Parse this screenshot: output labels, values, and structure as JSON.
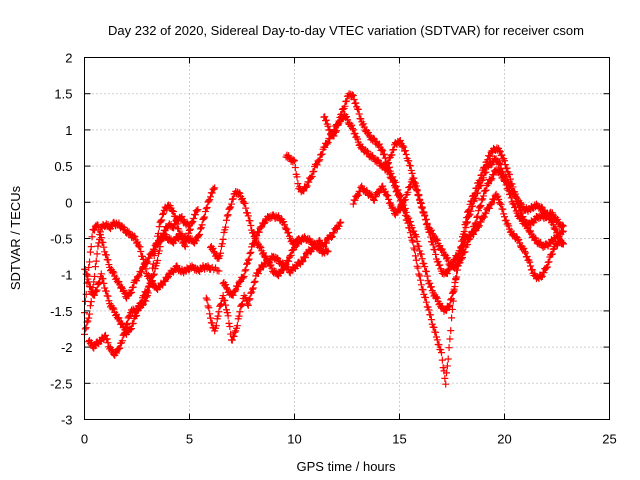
{
  "chart_data": {
    "type": "scatter",
    "title": "Day 232 of 2020, Sidereal Day-to-day VTEC variation (SDTVAR) for receiver csom",
    "xlabel": "GPS time / hours",
    "ylabel": "SDTVAR / TECUs",
    "xlim": [
      0,
      25
    ],
    "ylim": [
      -3,
      2
    ],
    "xticks": [
      0,
      5,
      10,
      15,
      20,
      25
    ],
    "xtick_labels": [
      "0",
      "5",
      "10",
      "15",
      "20",
      "25"
    ],
    "yticks": [
      -3,
      -2.5,
      -2,
      -1.5,
      -1,
      -0.5,
      0,
      0.5,
      1,
      1.5,
      2
    ],
    "ytick_labels": [
      "-3",
      "-2.5",
      "-2",
      "-1.5",
      "-1",
      "-0.5",
      "0",
      "0.5",
      "1",
      "1.5",
      "2"
    ],
    "grid": true,
    "marker": "+",
    "color": "#ff0000",
    "series": [
      {
        "name": "s1",
        "x": [
          0.0,
          0.2,
          0.4,
          0.6,
          0.8,
          1.0,
          1.2,
          1.4,
          1.6,
          1.8,
          2.0,
          2.2,
          2.4,
          2.6,
          2.8,
          3.0,
          3.2,
          3.4,
          3.6,
          3.8,
          4.0,
          4.2,
          4.4,
          4.6,
          4.8,
          5.0,
          5.2,
          5.4,
          5.6,
          5.8,
          6.0,
          6.2
        ],
        "y": [
          -1.5,
          -0.9,
          -0.4,
          -0.3,
          -0.5,
          -0.7,
          -0.9,
          -1.0,
          -1.1,
          -1.2,
          -1.3,
          -1.25,
          -1.1,
          -1.0,
          -0.9,
          -0.8,
          -0.7,
          -0.6,
          -0.5,
          -0.45,
          -0.5,
          -0.55,
          -0.5,
          -0.45,
          -0.5,
          -0.5,
          -0.55,
          -0.5,
          -0.3,
          -0.1,
          0.1,
          0.2
        ]
      },
      {
        "name": "s2",
        "x": [
          0.0,
          0.2,
          0.4,
          0.6,
          0.8,
          1.0,
          1.2,
          1.4,
          1.6,
          1.8,
          2.0,
          2.2,
          2.4,
          2.6,
          2.8,
          3.0,
          3.2,
          3.4,
          3.6,
          3.8,
          4.0,
          4.2,
          4.4,
          4.6,
          4.8,
          5.0,
          5.2,
          5.4,
          5.6,
          5.8,
          6.0,
          6.4
        ],
        "y": [
          -1.8,
          -1.6,
          -1.2,
          -0.7,
          -0.35,
          -0.3,
          -0.35,
          -0.3,
          -0.3,
          -0.35,
          -0.4,
          -0.45,
          -0.5,
          -0.6,
          -0.8,
          -1.0,
          -1.1,
          -1.2,
          -1.15,
          -1.1,
          -1.0,
          -0.95,
          -0.9,
          -0.95,
          -0.95,
          -0.9,
          -0.9,
          -0.95,
          -0.9,
          -0.9,
          -0.9,
          -0.95
        ]
      },
      {
        "name": "s3",
        "x": [
          0.2,
          0.4,
          0.6,
          0.8,
          1.0,
          1.2,
          1.4,
          1.6,
          1.8,
          2.0,
          2.2,
          2.4,
          2.6,
          2.8,
          3.0,
          3.2,
          3.4,
          3.6,
          3.8,
          4.0,
          4.2,
          4.4,
          4.6,
          4.8,
          5.0,
          5.2,
          5.4
        ],
        "y": [
          -1.9,
          -2.0,
          -1.95,
          -1.9,
          -1.85,
          -2.0,
          -2.1,
          -2.05,
          -1.9,
          -1.7,
          -1.5,
          -1.5,
          -1.45,
          -1.4,
          -1.3,
          -1.0,
          -0.6,
          -0.3,
          -0.1,
          -0.05,
          -0.1,
          -0.3,
          -0.5,
          -0.6,
          -0.4,
          -0.2,
          -0.1
        ]
      },
      {
        "name": "s4",
        "x": [
          0.0,
          0.2,
          0.4,
          0.6,
          0.8,
          1.0,
          1.2,
          1.4,
          1.6,
          1.8,
          2.0,
          2.2,
          2.4,
          2.6,
          2.8,
          3.0,
          3.2,
          3.4,
          3.6,
          3.8,
          4.0,
          4.2,
          4.4,
          4.6,
          4.8,
          5.0
        ],
        "y": [
          -0.9,
          -1.1,
          -1.3,
          -1.2,
          -1.0,
          -1.2,
          -1.4,
          -1.5,
          -1.6,
          -1.7,
          -1.8,
          -1.75,
          -1.6,
          -1.45,
          -1.3,
          -1.2,
          -1.1,
          -0.9,
          -0.6,
          -0.4,
          -0.3,
          -0.35,
          -0.25,
          -0.2,
          -0.3,
          -0.3
        ]
      },
      {
        "name": "s5",
        "x": [
          5.8,
          6.0,
          6.2,
          6.4,
          6.6,
          6.8,
          7.0,
          7.2,
          7.4,
          7.6,
          7.8,
          8.0,
          8.2,
          8.4,
          8.6,
          8.8,
          9.0,
          9.2,
          9.4,
          9.6,
          9.8,
          10.0,
          10.2,
          10.4,
          10.6,
          10.8,
          11.0,
          11.2,
          11.4,
          11.6,
          11.8,
          12.0,
          12.2
        ],
        "y": [
          -1.3,
          -1.6,
          -1.8,
          -1.5,
          -1.3,
          -1.5,
          -1.9,
          -1.8,
          -1.5,
          -1.3,
          -1.4,
          -1.2,
          -1.0,
          -0.9,
          -0.85,
          -0.8,
          -0.75,
          -0.8,
          -0.85,
          -0.9,
          -0.95,
          -0.9,
          -0.85,
          -0.8,
          -0.7,
          -0.65,
          -0.6,
          -0.55,
          -0.6,
          -0.5,
          -0.45,
          -0.35,
          -0.3
        ]
      },
      {
        "name": "s6",
        "x": [
          6.6,
          6.8,
          7.0,
          7.2,
          7.4,
          7.6,
          7.8,
          8.0,
          8.2,
          8.4,
          8.6,
          8.8,
          9.0,
          9.2,
          9.4,
          9.6,
          9.8,
          10.0,
          10.2,
          10.4,
          10.6,
          10.8,
          11.0,
          11.2,
          11.4,
          11.6
        ],
        "y": [
          -1.1,
          -1.2,
          -1.3,
          -1.2,
          -1.1,
          -1.0,
          -0.8,
          -0.6,
          -0.45,
          -0.35,
          -0.25,
          -0.2,
          -0.2,
          -0.2,
          -0.25,
          -0.35,
          -0.5,
          -0.6,
          -0.55,
          -0.5,
          -0.5,
          -0.55,
          -0.6,
          -0.65,
          -0.7,
          -0.65
        ]
      },
      {
        "name": "s7",
        "x": [
          6.0,
          6.2,
          6.4,
          6.6,
          6.8,
          7.0,
          7.2,
          7.4,
          7.6,
          7.8,
          8.0,
          8.2,
          8.4,
          8.6,
          8.8,
          9.0,
          9.2,
          9.4,
          9.6,
          9.8,
          10.0,
          10.2
        ],
        "y": [
          -0.6,
          -0.7,
          -0.8,
          -0.5,
          -0.2,
          0.0,
          0.15,
          0.1,
          0.0,
          -0.2,
          -0.4,
          -0.55,
          -0.65,
          -0.75,
          -0.85,
          -0.95,
          -1.0,
          -0.95,
          -0.85,
          -0.75,
          -0.6,
          -0.5
        ]
      },
      {
        "name": "s8",
        "x": [
          9.6,
          9.8,
          10.0,
          10.2,
          10.4,
          10.6,
          10.8,
          11.0,
          11.2,
          11.4,
          11.6,
          11.8,
          12.0,
          12.2,
          12.4,
          12.6,
          12.8,
          13.0,
          13.2,
          13.4,
          13.6,
          13.8,
          14.0,
          14.2,
          14.4,
          14.6,
          14.8,
          15.0,
          15.2,
          15.4,
          15.6,
          15.8,
          16.0,
          16.2,
          16.4,
          16.6,
          16.8,
          17.0,
          17.2,
          17.4,
          17.6,
          17.8,
          18.0,
          18.2,
          18.4,
          18.6,
          18.8,
          19.0,
          19.2,
          19.4,
          19.6,
          19.8,
          20.0,
          20.2,
          20.4,
          20.6,
          20.8,
          21.0,
          21.2,
          21.4,
          21.6,
          21.8,
          22.0,
          22.2,
          22.4,
          22.6,
          22.8
        ],
        "y": [
          0.65,
          0.6,
          0.55,
          0.2,
          0.15,
          0.25,
          0.35,
          0.5,
          0.6,
          0.75,
          0.85,
          0.95,
          1.05,
          1.15,
          1.2,
          1.1,
          1.0,
          0.85,
          0.75,
          0.7,
          0.65,
          0.6,
          0.55,
          0.5,
          0.45,
          0.35,
          0.2,
          0.05,
          -0.1,
          -0.3,
          -0.5,
          -0.8,
          -1.1,
          -1.3,
          -1.5,
          -1.7,
          -1.9,
          -2.1,
          -2.5,
          -1.9,
          -1.2,
          -0.8,
          -0.5,
          -0.2,
          0.0,
          0.15,
          0.3,
          0.45,
          0.6,
          0.7,
          0.75,
          0.7,
          0.55,
          0.4,
          0.2,
          0.0,
          -0.15,
          -0.3,
          -0.4,
          -0.5,
          -0.55,
          -0.6,
          -0.6,
          -0.55,
          -0.5,
          -0.45,
          -0.4
        ]
      },
      {
        "name": "s9",
        "x": [
          11.4,
          11.6,
          11.8,
          12.0,
          12.2,
          12.4,
          12.6,
          12.8,
          13.0,
          13.2,
          13.4,
          13.6,
          13.8,
          14.0,
          14.2,
          14.4,
          14.6,
          14.8,
          15.0,
          15.2,
          15.4,
          15.6,
          15.8,
          16.0,
          16.2,
          16.4,
          16.6,
          16.8,
          17.0,
          17.2,
          17.4,
          17.6,
          17.8,
          18.0,
          18.2,
          18.4,
          18.6,
          18.8,
          19.0,
          19.2,
          19.4,
          19.6,
          19.8,
          20.0,
          20.2,
          20.4,
          20.6,
          20.8,
          21.0,
          21.2,
          21.4,
          21.6,
          21.8,
          22.0,
          22.2,
          22.4,
          22.6,
          22.8
        ],
        "y": [
          1.2,
          1.05,
          0.9,
          1.0,
          1.2,
          1.35,
          1.5,
          1.45,
          1.3,
          1.1,
          1.0,
          0.9,
          0.85,
          0.8,
          0.7,
          0.55,
          0.4,
          0.25,
          0.1,
          -0.05,
          -0.2,
          -0.35,
          -0.5,
          -0.7,
          -0.9,
          -1.1,
          -1.25,
          -1.35,
          -1.45,
          -1.5,
          -1.4,
          -1.2,
          -0.9,
          -0.6,
          -0.3,
          -0.1,
          0.05,
          0.2,
          0.35,
          0.5,
          0.55,
          0.6,
          0.5,
          0.35,
          0.25,
          0.15,
          0.05,
          -0.05,
          -0.1,
          -0.1,
          -0.05,
          -0.05,
          -0.1,
          -0.15,
          -0.25,
          -0.35,
          -0.5,
          -0.6
        ]
      },
      {
        "name": "s10",
        "x": [
          12.8,
          13.0,
          13.2,
          13.4,
          13.6,
          13.8,
          14.0,
          14.2,
          14.4,
          14.6,
          14.8,
          15.0,
          15.2,
          15.4,
          15.6,
          15.8,
          16.0,
          16.2,
          16.4,
          16.6,
          16.8,
          17.0,
          17.2,
          17.4,
          17.6,
          17.8,
          18.0,
          18.2,
          18.4,
          18.6,
          18.8,
          19.0,
          19.2,
          19.4,
          19.6,
          19.8,
          20.0,
          20.2,
          20.4,
          20.6,
          20.8,
          21.0,
          21.2,
          21.4,
          21.6,
          21.8,
          22.0,
          22.2,
          22.4,
          22.6,
          22.8
        ],
        "y": [
          0.0,
          0.1,
          0.2,
          0.15,
          0.1,
          0.05,
          0.15,
          0.2,
          0.1,
          -0.05,
          -0.15,
          -0.1,
          0.0,
          0.15,
          0.3,
          0.2,
          0.0,
          -0.2,
          -0.4,
          -0.6,
          -0.8,
          -0.95,
          -1.0,
          -0.9,
          -0.8,
          -0.7,
          -0.6,
          -0.5,
          -0.45,
          -0.4,
          -0.3,
          -0.2,
          -0.1,
          0.0,
          0.1,
          0.0,
          -0.2,
          -0.35,
          -0.45,
          -0.5,
          -0.6,
          -0.7,
          -0.85,
          -1.0,
          -1.05,
          -1.0,
          -0.9,
          -0.75,
          -0.6,
          -0.55,
          -0.55
        ]
      },
      {
        "name": "s11",
        "x": [
          14.4,
          14.6,
          14.8,
          15.0,
          15.2,
          15.4,
          15.6,
          15.8,
          16.0,
          16.2,
          16.4,
          16.6,
          16.8,
          17.0,
          17.2,
          17.4,
          17.6,
          17.8,
          18.0,
          18.2,
          18.4,
          18.6,
          18.8,
          19.0,
          19.2,
          19.4,
          19.6,
          19.8,
          20.0,
          20.2,
          20.4,
          20.6,
          20.8,
          21.0,
          21.2,
          21.4,
          21.6,
          21.8,
          22.0,
          22.2,
          22.4,
          22.6,
          22.8
        ],
        "y": [
          0.5,
          0.65,
          0.8,
          0.85,
          0.75,
          0.6,
          0.4,
          0.2,
          0.0,
          -0.2,
          -0.35,
          -0.45,
          -0.55,
          -0.65,
          -0.75,
          -0.85,
          -0.9,
          -0.85,
          -0.75,
          -0.6,
          -0.45,
          -0.3,
          -0.1,
          0.1,
          0.25,
          0.35,
          0.45,
          0.4,
          0.3,
          0.15,
          0.0,
          -0.15,
          -0.25,
          -0.3,
          -0.3,
          -0.25,
          -0.2,
          -0.2,
          -0.2,
          -0.15,
          -0.2,
          -0.3,
          -0.35
        ]
      }
    ]
  }
}
